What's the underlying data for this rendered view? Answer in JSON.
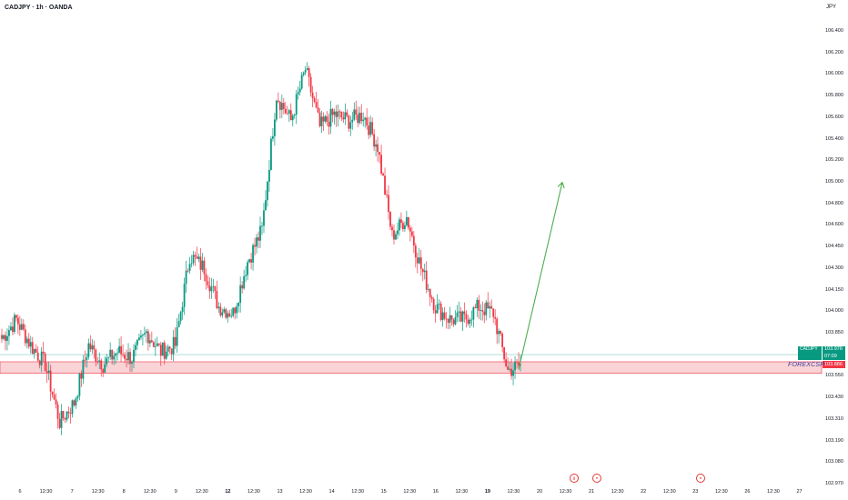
{
  "header": {
    "title": "CADJPY · 1h · OANDA",
    "currency": "JPY"
  },
  "watermark": "FOREXCSP",
  "price_labels": {
    "symbol": "CADJPY",
    "current_price": "103.976",
    "countdown": "07:09",
    "zone_price": "103.886"
  },
  "colors": {
    "up": "#089981",
    "down": "#f23645",
    "zone_fill": "#f7c8cc",
    "zone_border": "#f23645",
    "arrow": "#4caf50",
    "price_line": "#26a69a"
  },
  "events": [
    {
      "name": "scheduled-event-icon",
      "label": "))"
    },
    {
      "name": "scheduled-event-icon",
      "label": "●"
    },
    {
      "name": "scheduled-event-icon",
      "label": "●"
    }
  ],
  "chart_data": {
    "type": "candlestick",
    "symbol": "CADJPY",
    "interval": "1h",
    "broker": "OANDA",
    "y_axis": {
      "position": "right",
      "ylim": [
        102.97,
        106.5
      ],
      "tick_labels": [
        "106.400",
        "106.200",
        "106.000",
        "105.800",
        "105.600",
        "105.400",
        "105.200",
        "105.000",
        "104.800",
        "104.600",
        "104.450",
        "104.300",
        "104.150",
        "104.000",
        "103.850",
        "103.700",
        "103.550",
        "103.430",
        "103.310",
        "103.190",
        "103.080",
        "102.970"
      ]
    },
    "x_axis": {
      "tick_labels": [
        {
          "label": "6",
          "bold": false
        },
        {
          "label": "12:30",
          "bold": false
        },
        {
          "label": "7",
          "bold": false
        },
        {
          "label": "12:30",
          "bold": false
        },
        {
          "label": "8",
          "bold": false
        },
        {
          "label": "12:30",
          "bold": false
        },
        {
          "label": "9",
          "bold": false
        },
        {
          "label": "12:30",
          "bold": false
        },
        {
          "label": "12",
          "bold": true
        },
        {
          "label": "12:30",
          "bold": false
        },
        {
          "label": "13",
          "bold": false
        },
        {
          "label": "12:30",
          "bold": false
        },
        {
          "label": "14",
          "bold": false
        },
        {
          "label": "12:30",
          "bold": false
        },
        {
          "label": "15",
          "bold": false
        },
        {
          "label": "12:30",
          "bold": false
        },
        {
          "label": "16",
          "bold": false
        },
        {
          "label": "12:30",
          "bold": false
        },
        {
          "label": "19",
          "bold": true
        },
        {
          "label": "12:30",
          "bold": false
        },
        {
          "label": "20",
          "bold": false
        },
        {
          "label": "12:30",
          "bold": false
        },
        {
          "label": "21",
          "bold": false
        },
        {
          "label": "12:30",
          "bold": false
        },
        {
          "label": "22",
          "bold": false
        },
        {
          "label": "12:30",
          "bold": false
        },
        {
          "label": "23",
          "bold": false
        },
        {
          "label": "12:30",
          "bold": false
        },
        {
          "label": "26",
          "bold": false
        },
        {
          "label": "12:30",
          "bold": false
        },
        {
          "label": "27",
          "bold": false
        }
      ]
    },
    "close_anchors": [
      104.1,
      104.25,
      104.05,
      103.9,
      103.45,
      103.6,
      104.05,
      103.9,
      104.0,
      103.95,
      104.15,
      104.0,
      104.05,
      104.75,
      104.65,
      104.35,
      104.3,
      104.7,
      104.95,
      106.0,
      105.8,
      106.2,
      105.75,
      105.85,
      105.8,
      105.85,
      105.6,
      104.9,
      105.05,
      104.65,
      104.35,
      104.25,
      104.25,
      104.35,
      104.3,
      103.85,
      103.9
    ],
    "zone": {
      "from": 103.83,
      "to": 103.92
    },
    "current_price": 103.976,
    "projection": {
      "from_price": 103.86,
      "to_price": 105.32
    }
  }
}
